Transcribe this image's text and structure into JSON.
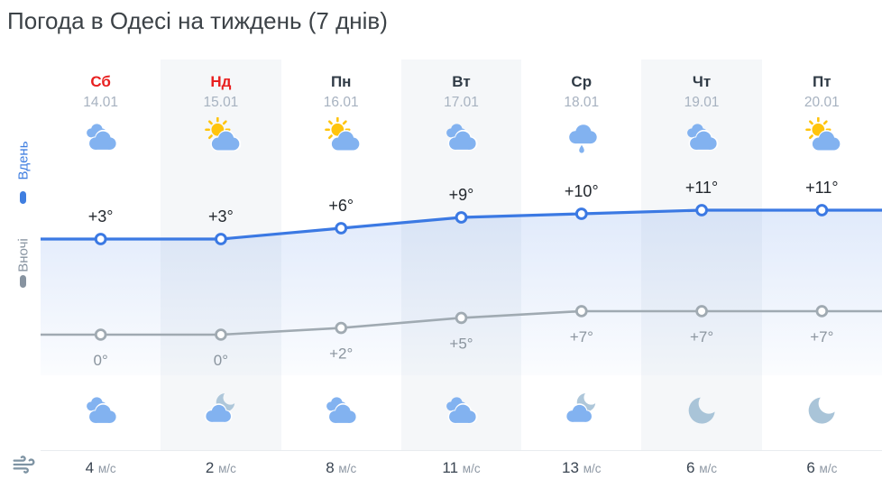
{
  "title": "Погода в Одесі на тиждень (7 днів)",
  "sidebar": {
    "day_label": "Вдень",
    "night_label": "Вночі",
    "wind_icon": "wind"
  },
  "days": [
    {
      "name": "Сб",
      "date": "14.01",
      "weekend": true,
      "day_icon": "cloudy",
      "night_icon": "cloudy",
      "wind": "4",
      "wind_unit": "м/с"
    },
    {
      "name": "Нд",
      "date": "15.01",
      "weekend": true,
      "day_icon": "sun-cloud",
      "night_icon": "cloud-moon",
      "wind": "2",
      "wind_unit": "м/с"
    },
    {
      "name": "Пн",
      "date": "16.01",
      "weekend": false,
      "day_icon": "sun-cloud",
      "night_icon": "cloudy",
      "wind": "8",
      "wind_unit": "м/с"
    },
    {
      "name": "Вт",
      "date": "17.01",
      "weekend": false,
      "day_icon": "cloudy",
      "night_icon": "cloudy",
      "wind": "11",
      "wind_unit": "м/с"
    },
    {
      "name": "Ср",
      "date": "18.01",
      "weekend": false,
      "day_icon": "rain",
      "night_icon": "cloud-moon",
      "wind": "13",
      "wind_unit": "м/с"
    },
    {
      "name": "Чт",
      "date": "19.01",
      "weekend": false,
      "day_icon": "cloudy",
      "night_icon": "moon",
      "wind": "6",
      "wind_unit": "м/с"
    },
    {
      "name": "Пт",
      "date": "20.01",
      "weekend": false,
      "day_icon": "sun-cloud",
      "night_icon": "moon",
      "wind": "6",
      "wind_unit": "м/с"
    }
  ],
  "chart_data": {
    "type": "line",
    "categories": [
      "Сб",
      "Нд",
      "Пн",
      "Вт",
      "Ср",
      "Чт",
      "Пт"
    ],
    "series": [
      {
        "name": "Вдень",
        "values": [
          3,
          3,
          6,
          9,
          10,
          11,
          11
        ],
        "labels": [
          "+3°",
          "+3°",
          "+6°",
          "+9°",
          "+10°",
          "+11°",
          "+11°"
        ],
        "color": "#3b79e3"
      },
      {
        "name": "Вночі",
        "values": [
          0,
          0,
          2,
          5,
          7,
          7,
          7
        ],
        "labels": [
          "0°",
          "0°",
          "+2°",
          "+5°",
          "+7°",
          "+7°",
          "+7°"
        ],
        "color": "#a0aab2"
      }
    ],
    "title": "",
    "xlabel": "",
    "ylabel": "",
    "grid": false,
    "legend_position": "left-sidebar",
    "area_fill": "gradient-under-day-line"
  },
  "colors": {
    "weekend_red": "#e81f1f",
    "weekday_dark": "#303b46",
    "date_gray": "#a7b2c0",
    "day_line_blue": "#3b79e3",
    "night_line_gray": "#a0aab2",
    "cloud_blue": "#82b2f0",
    "sun_yellow": "#ffc40d",
    "moon_gray": "#aec7da",
    "stripe_bg": "#f5f7f9"
  }
}
